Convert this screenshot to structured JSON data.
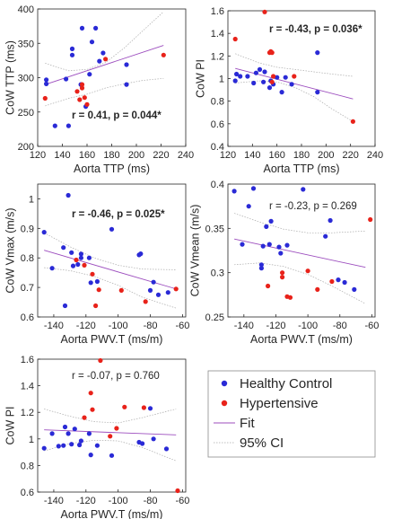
{
  "colors": {
    "healthy": "#2a2ad6",
    "hypertensive": "#e8221a",
    "fit": "#9c4dbe",
    "ci": "#aaaaaa",
    "axis": "#262626"
  },
  "legend": {
    "items": [
      {
        "label": "Healthy Control",
        "kind": "dot-healthy"
      },
      {
        "label": "Hypertensive",
        "kind": "dot-hypertensive"
      },
      {
        "label": "Fit",
        "kind": "line-fit"
      },
      {
        "label": "95% CI",
        "kind": "line-ci"
      }
    ]
  },
  "chart_data": [
    {
      "type": "scatter",
      "xlabel": "Aorta TTP (ms)",
      "ylabel": "CoW TTP (ms)",
      "annotation": "r = 0.41, p = 0.044*",
      "annotation_bold": true,
      "xlim": [
        120,
        240
      ],
      "ylim": [
        200,
        400
      ],
      "xticks": [
        120,
        140,
        160,
        180,
        200,
        220,
        240
      ],
      "yticks": [
        200,
        250,
        300,
        350,
        400
      ],
      "fit": [
        [
          126,
          290
        ],
        [
          222,
          347
        ]
      ],
      "ci_upper": [
        [
          126,
          321
        ],
        [
          145,
          310
        ],
        [
          160,
          312
        ],
        [
          175,
          322
        ],
        [
          190,
          343
        ],
        [
          205,
          368
        ],
        [
          222,
          396
        ]
      ],
      "ci_lower": [
        [
          126,
          259
        ],
        [
          145,
          270
        ],
        [
          160,
          276
        ],
        [
          175,
          285
        ],
        [
          190,
          291
        ],
        [
          205,
          296
        ],
        [
          222,
          299
        ]
      ],
      "series": [
        {
          "name": "Healthy Control",
          "color_key": "healthy",
          "points": [
            [
              127,
              291
            ],
            [
              127,
              297
            ],
            [
              134,
              230
            ],
            [
              143,
              298
            ],
            [
              145,
              230
            ],
            [
              148,
              342
            ],
            [
              148,
              333
            ],
            [
              155,
              290
            ],
            [
              156,
              372
            ],
            [
              159,
              258
            ],
            [
              162,
              305
            ],
            [
              164,
              352
            ],
            [
              167,
              372
            ],
            [
              170,
              324
            ],
            [
              173,
              336
            ],
            [
              192,
              319
            ],
            [
              192,
              290
            ]
          ]
        },
        {
          "name": "Hypertensive",
          "color_key": "hypertensive",
          "points": [
            [
              126,
              270
            ],
            [
              152,
              280
            ],
            [
              154,
              268
            ],
            [
              156,
              290
            ],
            [
              156,
              285
            ],
            [
              158,
              271
            ],
            [
              160,
              261
            ],
            [
              175,
              327
            ],
            [
              222,
              333
            ]
          ]
        }
      ]
    },
    {
      "type": "scatter",
      "xlabel": "Aorta TTP (ms)",
      "ylabel": "CoW PI",
      "annotation": "r = -0.43, p = 0.036*",
      "annotation_bold": true,
      "xlim": [
        120,
        240
      ],
      "ylim": [
        0.4,
        1.6
      ],
      "xticks": [
        120,
        140,
        160,
        180,
        200,
        220,
        240
      ],
      "yticks": [
        0.4,
        0.6,
        0.8,
        1,
        1.2,
        1.4,
        1.6
      ],
      "fit": [
        [
          126,
          1.09
        ],
        [
          222,
          0.82
        ]
      ],
      "ci_upper": [
        [
          126,
          1.22
        ],
        [
          145,
          1.14
        ],
        [
          160,
          1.1
        ],
        [
          175,
          1.08
        ],
        [
          190,
          1.06
        ],
        [
          205,
          1.04
        ],
        [
          222,
          1.02
        ]
      ],
      "ci_lower": [
        [
          126,
          0.96
        ],
        [
          145,
          0.98
        ],
        [
          160,
          0.97
        ],
        [
          175,
          0.92
        ],
        [
          190,
          0.84
        ],
        [
          205,
          0.73
        ],
        [
          222,
          0.62
        ]
      ],
      "series": [
        {
          "name": "Healthy Control",
          "color_key": "healthy",
          "points": [
            [
              126,
              0.98
            ],
            [
              127,
              1.04
            ],
            [
              130,
              1.02
            ],
            [
              136,
              1.02
            ],
            [
              141,
              0.96
            ],
            [
              143,
              1.05
            ],
            [
              146,
              1.08
            ],
            [
              149,
              0.97
            ],
            [
              150,
              1.06
            ],
            [
              154,
              0.92
            ],
            [
              155,
              0.98
            ],
            [
              157,
              0.95
            ],
            [
              160,
              1.01
            ],
            [
              164,
              0.88
            ],
            [
              167,
              1.01
            ],
            [
              172,
              0.95
            ],
            [
              193,
              1.23
            ],
            [
              193,
              0.88
            ]
          ]
        },
        {
          "name": "Hypertensive",
          "color_key": "hypertensive",
          "points": [
            [
              126,
              1.35
            ],
            [
              150,
              1.59
            ],
            [
              154,
              1.23
            ],
            [
              155,
              1.24
            ],
            [
              156,
              1.23
            ],
            [
              156,
              0.97
            ],
            [
              157,
              1.02
            ],
            [
              174,
              1.02
            ],
            [
              222,
              0.62
            ]
          ]
        }
      ]
    },
    {
      "type": "scatter",
      "xlabel": "Aorta PWV.T (ms/m)",
      "ylabel": "CoW Vmax (m/s)",
      "annotation": "r = -0.46, p = 0.025*",
      "annotation_bold": true,
      "xlim": [
        -150,
        -58
      ],
      "ylim": [
        0.6,
        1.05
      ],
      "xticks": [
        -140,
        -120,
        -100,
        -80,
        -60
      ],
      "yticks": [
        0.6,
        0.7,
        0.8,
        0.9,
        1
      ],
      "fit": [
        [
          -146,
          0.826
        ],
        [
          -64,
          0.695
        ]
      ],
      "ci_upper": [
        [
          -146,
          0.885
        ],
        [
          -130,
          0.838
        ],
        [
          -115,
          0.8
        ],
        [
          -100,
          0.775
        ],
        [
          -85,
          0.762
        ],
        [
          -64,
          0.76
        ]
      ],
      "ci_lower": [
        [
          -146,
          0.767
        ],
        [
          -130,
          0.757
        ],
        [
          -115,
          0.738
        ],
        [
          -100,
          0.707
        ],
        [
          -85,
          0.667
        ],
        [
          -64,
          0.63
        ]
      ],
      "series": [
        {
          "name": "Healthy Control",
          "color_key": "healthy",
          "points": [
            [
              -146,
              0.887
            ],
            [
              -141,
              0.765
            ],
            [
              -134,
              0.835
            ],
            [
              -133,
              0.638
            ],
            [
              -131,
              1.012
            ],
            [
              -129,
              0.818
            ],
            [
              -128,
              0.773
            ],
            [
              -125,
              0.778
            ],
            [
              -123,
              0.8
            ],
            [
              -123,
              0.813
            ],
            [
              -118,
              0.8
            ],
            [
              -117,
              0.716
            ],
            [
              -113,
              0.72
            ],
            [
              -104,
              0.897
            ],
            [
              -87,
              0.81
            ],
            [
              -86,
              0.814
            ],
            [
              -80,
              0.69
            ],
            [
              -78,
              0.718
            ],
            [
              -75,
              0.675
            ],
            [
              -69,
              0.683
            ]
          ]
        },
        {
          "name": "Hypertensive",
          "color_key": "hypertensive",
          "points": [
            [
              -126,
              0.793
            ],
            [
              -121,
              0.775
            ],
            [
              -116,
              0.745
            ],
            [
              -114,
              0.638
            ],
            [
              -112,
              0.692
            ],
            [
              -98,
              0.69
            ],
            [
              -83,
              0.652
            ],
            [
              -64,
              0.695
            ]
          ]
        }
      ]
    },
    {
      "type": "scatter",
      "xlabel": "Aorta PWV.T (ms/m)",
      "ylabel": "CoW Vmean (m/s)",
      "annotation": "r = -0.23, p = 0.269",
      "annotation_bold": false,
      "xlim": [
        -150,
        -58
      ],
      "ylim": [
        0.25,
        0.4
      ],
      "xticks": [
        -140,
        -120,
        -100,
        -80,
        -60
      ],
      "yticks": [
        0.25,
        0.3,
        0.35,
        0.4
      ],
      "fit": [
        [
          -146,
          0.338
        ],
        [
          -64,
          0.306
        ]
      ],
      "ci_upper": [
        [
          -146,
          0.367
        ],
        [
          -130,
          0.357
        ],
        [
          -115,
          0.349
        ],
        [
          -100,
          0.345
        ],
        [
          -85,
          0.345
        ],
        [
          -64,
          0.347
        ]
      ],
      "ci_lower": [
        [
          -146,
          0.309
        ],
        [
          -130,
          0.311
        ],
        [
          -115,
          0.307
        ],
        [
          -100,
          0.298
        ],
        [
          -85,
          0.285
        ],
        [
          -64,
          0.265
        ]
      ],
      "series": [
        {
          "name": "Healthy Control",
          "color_key": "healthy",
          "points": [
            [
              -146,
              0.392
            ],
            [
              -141,
              0.332
            ],
            [
              -137,
              0.375
            ],
            [
              -134,
              0.395
            ],
            [
              -129,
              0.309
            ],
            [
              -129,
              0.305
            ],
            [
              -128,
              0.33
            ],
            [
              -126,
              0.352
            ],
            [
              -124,
              0.332
            ],
            [
              -123,
              0.358
            ],
            [
              -118,
              0.329
            ],
            [
              -117,
              0.322
            ],
            [
              -113,
              0.331
            ],
            [
              -103,
              0.394
            ],
            [
              -89,
              0.341
            ],
            [
              -86,
              0.359
            ],
            [
              -81,
              0.292
            ],
            [
              -77,
              0.289
            ],
            [
              -71,
              0.281
            ]
          ]
        },
        {
          "name": "Hypertensive",
          "color_key": "hypertensive",
          "points": [
            [
              -125,
              0.285
            ],
            [
              -116,
              0.3
            ],
            [
              -116,
              0.295
            ],
            [
              -113,
              0.273
            ],
            [
              -111,
              0.272
            ],
            [
              -100,
              0.302
            ],
            [
              -94,
              0.281
            ],
            [
              -85,
              0.29
            ],
            [
              -61,
              0.36
            ]
          ]
        }
      ]
    },
    {
      "type": "scatter",
      "xlabel": "Aorta PWV.T (ms/m)",
      "ylabel": "CoW PI",
      "annotation": "r = -0.07, p = 0.760",
      "annotation_bold": false,
      "xlim": [
        -150,
        -58
      ],
      "ylim": [
        0.6,
        1.6
      ],
      "xticks": [
        -140,
        -120,
        -100,
        -80,
        -60
      ],
      "yticks": [
        0.6,
        0.8,
        1,
        1.2,
        1.4,
        1.6
      ],
      "fit": [
        [
          -146,
          1.068
        ],
        [
          -64,
          1.03
        ]
      ],
      "ci_upper": [
        [
          -146,
          1.225
        ],
        [
          -130,
          1.17
        ],
        [
          -115,
          1.13
        ],
        [
          -100,
          1.12
        ],
        [
          -85,
          1.16
        ],
        [
          -64,
          1.225
        ]
      ],
      "ci_lower": [
        [
          -146,
          0.91
        ],
        [
          -130,
          0.965
        ],
        [
          -115,
          0.99
        ],
        [
          -100,
          0.985
        ],
        [
          -85,
          0.935
        ],
        [
          -64,
          0.835
        ]
      ],
      "series": [
        {
          "name": "Healthy Control",
          "color_key": "healthy",
          "points": [
            [
              -146,
              0.93
            ],
            [
              -141,
              1.04
            ],
            [
              -137,
              0.945
            ],
            [
              -134,
              0.95
            ],
            [
              -133,
              1.09
            ],
            [
              -131,
              1.04
            ],
            [
              -129,
              0.96
            ],
            [
              -127,
              1.075
            ],
            [
              -124,
              0.955
            ],
            [
              -123,
              0.985
            ],
            [
              -118,
              1.04
            ],
            [
              -117,
              0.88
            ],
            [
              -113,
              0.95
            ],
            [
              -104,
              0.875
            ],
            [
              -87,
              0.975
            ],
            [
              -85,
              0.965
            ],
            [
              -80,
              1.23
            ],
            [
              -78,
              1.0
            ],
            [
              -70,
              0.925
            ]
          ]
        },
        {
          "name": "Hypertensive",
          "color_key": "hypertensive",
          "points": [
            [
              -121,
              1.16
            ],
            [
              -117,
              1.345
            ],
            [
              -116,
              1.22
            ],
            [
              -111,
              1.59
            ],
            [
              -105,
              1.02
            ],
            [
              -101,
              1.08
            ],
            [
              -96,
              1.24
            ],
            [
              -84,
              1.235
            ],
            [
              -63,
              0.61
            ]
          ]
        }
      ]
    }
  ]
}
